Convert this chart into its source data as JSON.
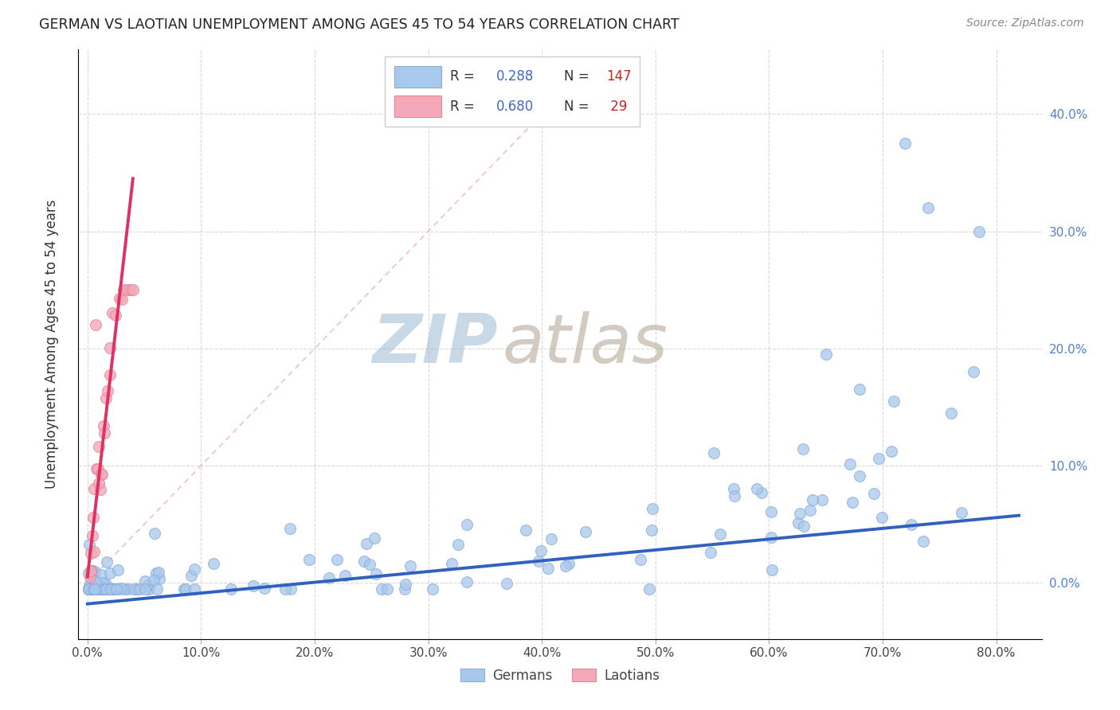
{
  "title": "GERMAN VS LAOTIAN UNEMPLOYMENT AMONG AGES 45 TO 54 YEARS CORRELATION CHART",
  "source": "Source: ZipAtlas.com",
  "ylabel": "Unemployment Among Ages 45 to 54 years",
  "xlim": [
    -0.008,
    0.84
  ],
  "ylim": [
    -0.048,
    0.455
  ],
  "xticks": [
    0.0,
    0.1,
    0.2,
    0.3,
    0.4,
    0.5,
    0.6,
    0.7,
    0.8
  ],
  "yticks": [
    0.0,
    0.1,
    0.2,
    0.3,
    0.4
  ],
  "german_R": 0.288,
  "german_N": 147,
  "laotian_R": 0.68,
  "laotian_N": 29,
  "german_color": "#A8C8EC",
  "laotian_color": "#F4A8B8",
  "german_edge_color": "#88AADC",
  "laotian_edge_color": "#E08898",
  "german_line_color": "#3060C0",
  "laotian_line_color": "#E03060",
  "diag_line_color": "#F0A0B0",
  "right_tick_color": "#5080D0",
  "watermark_zip_color": "#9BB5CC",
  "watermark_atlas_color": "#B8A898",
  "background_color": "#FFFFFF",
  "german_slope": 0.092,
  "german_intercept": -0.018,
  "laotian_slope": 8.5,
  "laotian_intercept": 0.005
}
